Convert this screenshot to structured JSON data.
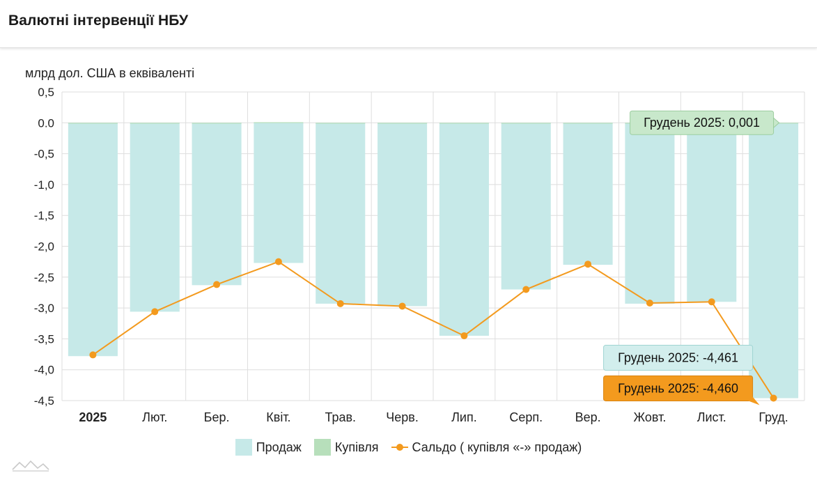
{
  "header": {
    "title": "Валютні інтервенції НБУ"
  },
  "colors": {
    "sales": "#c6e9e8",
    "purchase": "#b7dfbb",
    "balance": "#f39a1e",
    "grid": "#dedede",
    "tooltip_sales": "#d2eeed",
    "tooltip_purchase": "#c8e8cb"
  },
  "chart_data": {
    "type": "bar",
    "ylabel": "млрд дол. США в еквіваленті",
    "ylim": [
      -4.5,
      0.5
    ],
    "yticks": [
      "0,5",
      "0.0",
      "-0,5",
      "-1,0",
      "-1,5",
      "-2,0",
      "-2,5",
      "-3,0",
      "-3,5",
      "-4,0",
      "-4,5"
    ],
    "categories": [
      "2025",
      "Лют.",
      "Бер.",
      "Квіт.",
      "Трав.",
      "Черв.",
      "Лип.",
      "Серп.",
      "Вер.",
      "Жовт.",
      "Лист.",
      "Груд."
    ],
    "series": [
      {
        "name": "Продаж",
        "kind": "bar",
        "values": [
          -3.78,
          -3.06,
          -2.63,
          -2.27,
          -2.93,
          -2.97,
          -3.45,
          -2.7,
          -2.3,
          -2.93,
          -2.9,
          -4.461
        ]
      },
      {
        "name": "Купівля",
        "kind": "bar",
        "values": [
          0.0,
          0.0,
          0.0,
          0.01,
          0.0,
          0.0,
          0.0,
          0.0,
          0.0,
          0.0,
          0.0,
          0.001
        ]
      },
      {
        "name": "Сальдо ( купівля «-» продаж)",
        "kind": "line",
        "values": [
          -3.76,
          -3.06,
          -2.62,
          -2.25,
          -2.93,
          -2.97,
          -3.45,
          -2.7,
          -2.29,
          -2.92,
          -2.9,
          -4.46
        ]
      }
    ],
    "tooltips": [
      {
        "series": "Купівля",
        "text": "Грудень 2025: 0,001"
      },
      {
        "series": "Продаж",
        "text": "Грудень 2025: -4,461"
      },
      {
        "series": "Сальдо ( купівля «-» продаж)",
        "text": "Грудень 2025: -4,460"
      }
    ],
    "legend": "bottom-center",
    "grid": true
  }
}
